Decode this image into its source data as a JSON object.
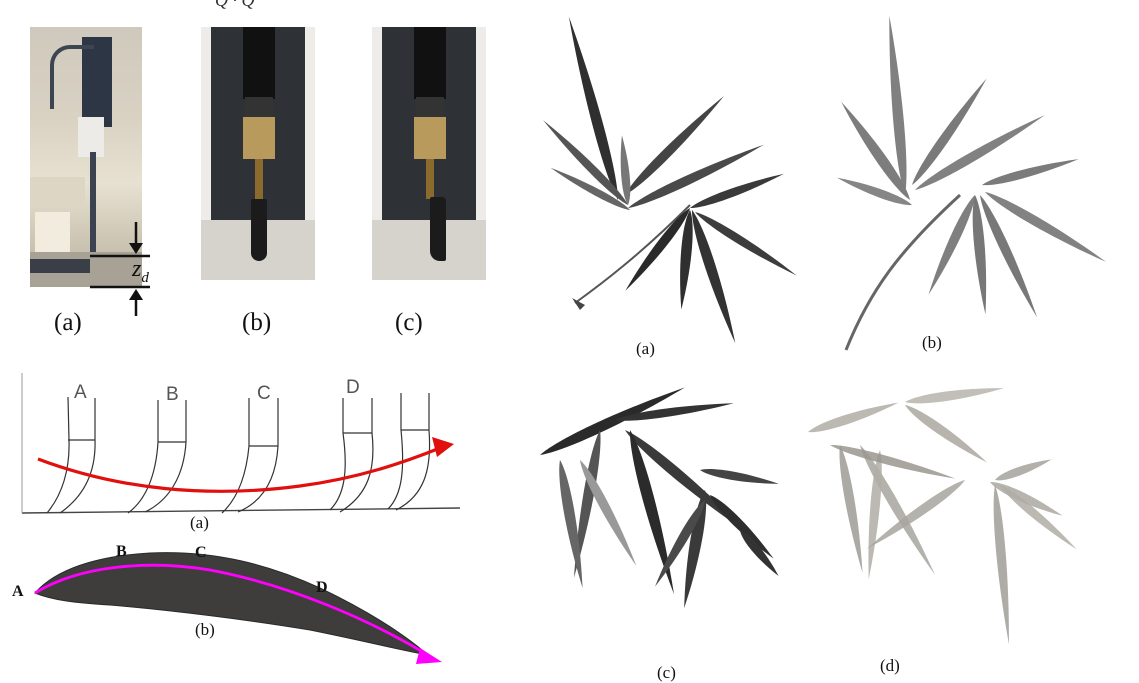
{
  "header_fragment": "Q  ·  Q",
  "top_left": {
    "photos": [
      {
        "caption": "(a)"
      },
      {
        "caption": "(b)"
      },
      {
        "caption": "(c)"
      }
    ],
    "annotation": {
      "symbol": "z",
      "subscript": "d"
    }
  },
  "mid_left": {
    "caption": "(a)",
    "positions": [
      "A",
      "B",
      "C",
      "D"
    ],
    "arrow_color": "#e0100f"
  },
  "bottom_left": {
    "caption": "(b)",
    "points": [
      "A",
      "B",
      "C",
      "D"
    ],
    "arrow_color": "#ff00ff"
  },
  "right_panel": {
    "paintings": [
      {
        "caption": "(a)",
        "tone": "#3a3a3a"
      },
      {
        "caption": "(b)",
        "tone": "#7b7b7b"
      },
      {
        "caption": "(c)",
        "tone": "#2e2e2e"
      },
      {
        "caption": "(d)",
        "tone": "#a3a09a"
      }
    ]
  }
}
